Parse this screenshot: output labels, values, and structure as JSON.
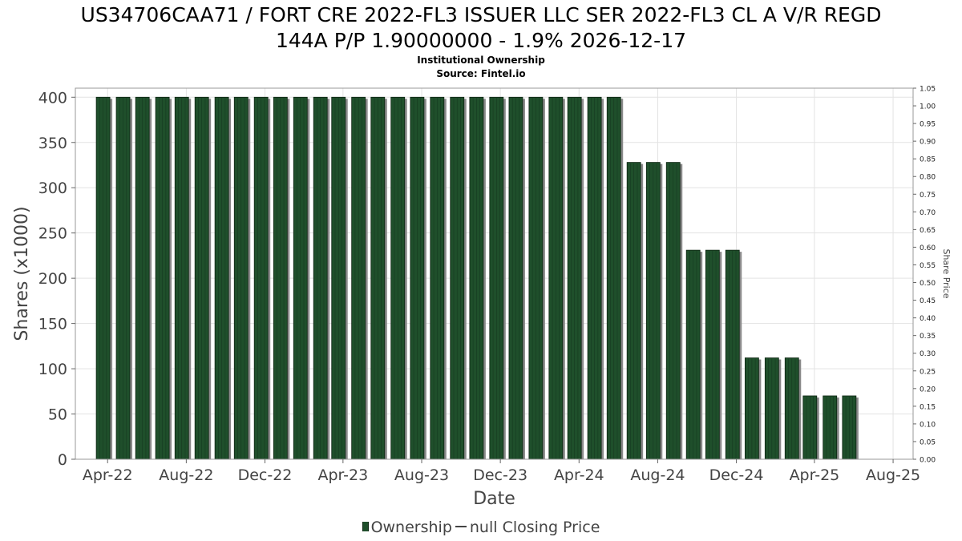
{
  "title_line_1": "US34706CAA71 / FORT CRE 2022-FL3 ISSUER LLC SER 2022-FL3 CL A V/R REGD",
  "title_line_2": "144A P/P 1.90000000 - 1.9% 2026-12-17",
  "subtitle": "Institutional Ownership",
  "source": "Source: Fintel.io",
  "legend": {
    "ownership": "Ownership",
    "closing_price": "null Closing Price"
  },
  "colors": {
    "bar_fill": "#1f4f2b",
    "bar_shadow": "#8a8a8a",
    "grid": "#e3e3e3",
    "axis_text": "#444444"
  },
  "chart_data": {
    "type": "bar",
    "title": "US34706CAA71 / FORT CRE 2022-FL3 ISSUER LLC SER 2022-FL3 CL A V/R REGD 144A P/P 1.90000000 - 1.9% 2026-12-17",
    "subtitle": "Institutional Ownership",
    "xlabel": "Date",
    "ylabel": "Shares (x1000)",
    "y2label": "Share Price",
    "x_ticks": [
      "Apr-22",
      "Aug-22",
      "Dec-22",
      "Apr-23",
      "Aug-23",
      "Dec-23",
      "Apr-24",
      "Aug-24",
      "Dec-24",
      "Apr-25",
      "Aug-25"
    ],
    "x_range": [
      "2022-02-10",
      "2025-09-01"
    ],
    "y_ticks": [
      0,
      50,
      100,
      150,
      200,
      250,
      300,
      350,
      400
    ],
    "ylim": [
      0,
      410
    ],
    "y2_ticks": [
      "0.00",
      "0.05",
      "0.10",
      "0.15",
      "0.20",
      "0.25",
      "0.30",
      "0.35",
      "0.40",
      "0.45",
      "0.50",
      "0.55",
      "0.60",
      "0.65",
      "0.70",
      "0.75",
      "0.80",
      "0.85",
      "0.90",
      "0.95",
      "1.00",
      "1.05"
    ],
    "y2lim": [
      0,
      1.05
    ],
    "grid": true,
    "legend_position": "bottom",
    "series": [
      {
        "name": "Ownership",
        "x": [
          "2022-03-25",
          "2022-04-25",
          "2022-05-25",
          "2022-06-25",
          "2022-07-25",
          "2022-08-25",
          "2022-09-25",
          "2022-10-25",
          "2022-11-25",
          "2022-12-25",
          "2023-01-25",
          "2023-02-25",
          "2023-03-25",
          "2023-04-25",
          "2023-05-25",
          "2023-06-25",
          "2023-07-25",
          "2023-08-25",
          "2023-09-25",
          "2023-10-25",
          "2023-11-25",
          "2023-12-25",
          "2024-01-25",
          "2024-02-25",
          "2024-03-25",
          "2024-04-25",
          "2024-05-25",
          "2024-06-25",
          "2024-07-25",
          "2024-08-25",
          "2024-09-25",
          "2024-10-25",
          "2024-11-25",
          "2024-12-25",
          "2025-01-25",
          "2025-02-25",
          "2025-03-25",
          "2025-04-25",
          "2025-05-25",
          "2025-06-25"
        ],
        "values": [
          400,
          400,
          400,
          400,
          400,
          400,
          400,
          400,
          400,
          400,
          400,
          400,
          400,
          400,
          400,
          400,
          400,
          400,
          400,
          400,
          400,
          400,
          400,
          400,
          400,
          400,
          400,
          328,
          328,
          328,
          231,
          231,
          231,
          112,
          112,
          112,
          70,
          70,
          70,
          0
        ]
      }
    ]
  }
}
